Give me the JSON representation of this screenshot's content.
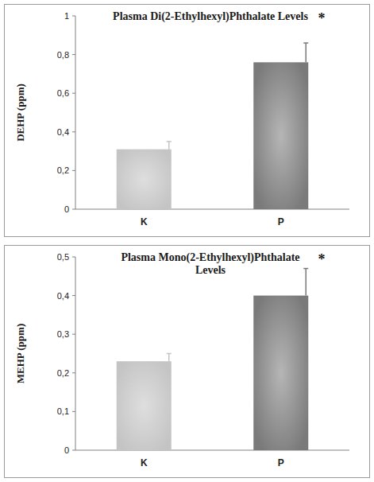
{
  "chart_data": [
    {
      "type": "bar",
      "title": "Plasma Di(2-Ethylhexyl)Phthalate Levels",
      "annotation": "*",
      "y_label": "DEHP (ppm)",
      "categories": [
        "K",
        "P"
      ],
      "values": [
        0.31,
        0.76
      ],
      "errors": [
        0.04,
        0.1
      ],
      "colors": [
        "#c4c4c4",
        "#7a7a7a"
      ],
      "ylim": [
        0,
        1
      ],
      "yticks": [
        0,
        {
          "value": 0.2,
          "label": "0,2"
        },
        {
          "value": 0.4,
          "label": "0,4"
        },
        {
          "value": 0.6,
          "label": "0,6"
        },
        {
          "value": 0.8,
          "label": "0,8"
        },
        1
      ],
      "grid": false
    },
    {
      "type": "bar",
      "title": "Plasma Mono(2-Ethylhexyl)Phthalate Levels",
      "annotation": "*",
      "y_label": "MEHP (ppm)",
      "categories": [
        "K",
        "P"
      ],
      "values": [
        0.23,
        0.4
      ],
      "errors": [
        0.02,
        0.07
      ],
      "colors": [
        "#c4c4c4",
        "#7a7a7a"
      ],
      "ylim": [
        0,
        0.5
      ],
      "yticks": [
        0,
        {
          "value": 0.1,
          "label": "0,1"
        },
        {
          "value": 0.2,
          "label": "0,2"
        },
        {
          "value": 0.3,
          "label": "0,3"
        },
        {
          "value": 0.4,
          "label": "0,4"
        },
        {
          "value": 0.5,
          "label": "0,5"
        }
      ],
      "grid": false
    }
  ]
}
